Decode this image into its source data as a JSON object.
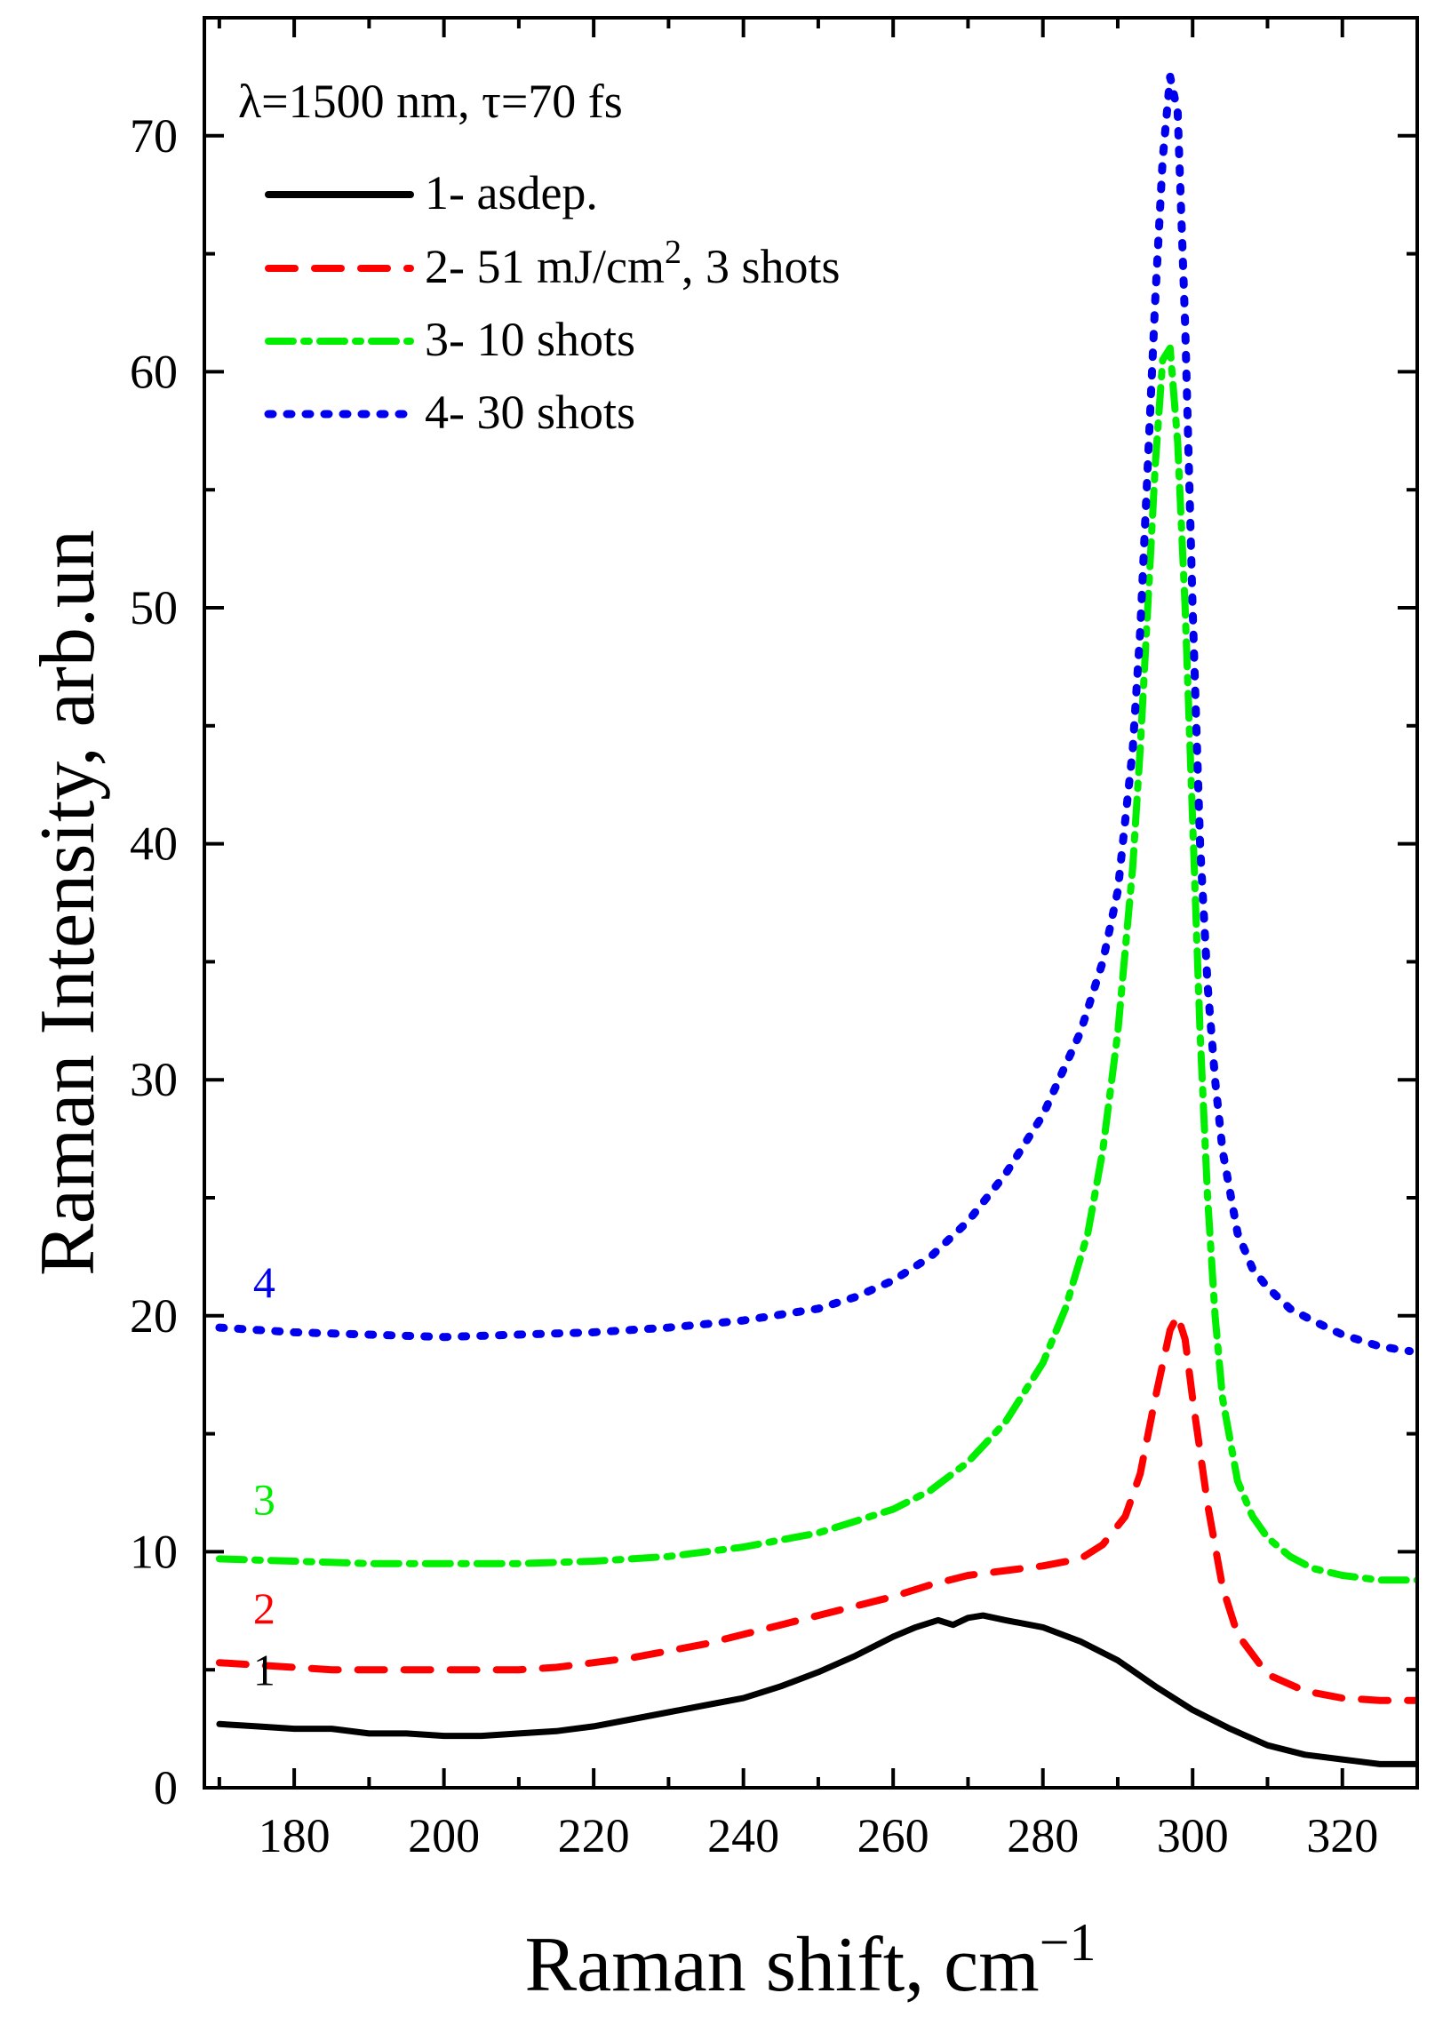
{
  "chart_data": {
    "type": "line",
    "xlabel": "Raman shift, cm",
    "xlabel_superscript": "−1",
    "ylabel": "Raman Intensity, arb.un",
    "annotation": "λ=1500 nm, τ=70 fs",
    "xlim": [
      168,
      330
    ],
    "ylim": [
      0,
      75
    ],
    "x_ticks": [
      180,
      200,
      220,
      240,
      260,
      280,
      300,
      320
    ],
    "y_ticks": [
      0,
      10,
      20,
      30,
      40,
      50,
      60,
      70
    ],
    "series": [
      {
        "name": "1- asdep.",
        "curve_label": "1",
        "color": "#000000",
        "style": "solid",
        "x": [
          170,
          175,
          180,
          185,
          190,
          195,
          200,
          205,
          210,
          215,
          220,
          225,
          230,
          235,
          240,
          245,
          250,
          255,
          260,
          263,
          266,
          268,
          270,
          272,
          275,
          280,
          285,
          290,
          295,
          300,
          305,
          310,
          315,
          320,
          325,
          330
        ],
        "y": [
          2.7,
          2.6,
          2.5,
          2.5,
          2.3,
          2.3,
          2.2,
          2.2,
          2.3,
          2.4,
          2.6,
          2.9,
          3.2,
          3.5,
          3.8,
          4.3,
          4.9,
          5.6,
          6.4,
          6.8,
          7.1,
          6.9,
          7.2,
          7.3,
          7.1,
          6.8,
          6.2,
          5.4,
          4.3,
          3.3,
          2.5,
          1.8,
          1.4,
          1.2,
          1.0,
          1.0
        ]
      },
      {
        "name": "2- 51 mJ/cm",
        "name_superscript": "2",
        "name_suffix": ", 3 shots",
        "curve_label": "2",
        "color": "#ff0000",
        "style": "dash",
        "x": [
          170,
          175,
          180,
          185,
          190,
          195,
          200,
          205,
          210,
          215,
          220,
          225,
          230,
          235,
          240,
          245,
          250,
          255,
          260,
          265,
          270,
          275,
          280,
          285,
          288,
          291,
          293,
          295,
          297,
          298,
          299,
          300,
          302,
          304,
          306,
          310,
          315,
          320,
          325,
          330
        ],
        "y": [
          5.3,
          5.2,
          5.1,
          5.0,
          5.0,
          5.0,
          5.0,
          5.0,
          5.0,
          5.1,
          5.3,
          5.5,
          5.8,
          6.1,
          6.5,
          6.9,
          7.3,
          7.7,
          8.1,
          8.6,
          9.0,
          9.2,
          9.4,
          9.7,
          10.3,
          11.5,
          13.3,
          16.5,
          19.4,
          20.0,
          19.0,
          16.5,
          12.0,
          8.5,
          6.5,
          4.8,
          4.1,
          3.8,
          3.7,
          3.7
        ]
      },
      {
        "name": "3- 10 shots",
        "curve_label": "3",
        "color": "#00ee00",
        "style": "dashdot",
        "x": [
          170,
          180,
          190,
          200,
          210,
          220,
          230,
          240,
          250,
          255,
          260,
          265,
          270,
          275,
          280,
          283,
          286,
          288,
          290,
          292,
          293,
          294,
          295,
          296,
          297,
          298,
          299,
          300,
          301,
          302,
          303,
          304,
          306,
          308,
          310,
          313,
          316,
          320,
          325,
          330
        ],
        "y": [
          9.7,
          9.6,
          9.5,
          9.5,
          9.5,
          9.6,
          9.8,
          10.2,
          10.8,
          11.3,
          11.8,
          12.6,
          13.8,
          15.5,
          18.0,
          20.3,
          23.5,
          27.0,
          32.0,
          39.0,
          44.0,
          50.0,
          56.0,
          60.5,
          61.0,
          57.0,
          50.0,
          41.0,
          32.0,
          25.0,
          20.0,
          16.5,
          13.0,
          11.5,
          10.6,
          9.8,
          9.3,
          9.0,
          8.8,
          8.8
        ]
      },
      {
        "name": "4- 30 shots",
        "curve_label": "4",
        "color": "#0000ee",
        "style": "dot",
        "x": [
          170,
          180,
          190,
          200,
          210,
          220,
          230,
          240,
          250,
          255,
          260,
          265,
          270,
          275,
          280,
          285,
          288,
          290,
          292,
          293,
          294,
          295,
          296,
          297,
          298,
          299,
          300,
          301,
          302,
          303,
          304,
          306,
          308,
          310,
          313,
          316,
          320,
          325,
          329
        ],
        "y": [
          19.5,
          19.3,
          19.2,
          19.1,
          19.2,
          19.3,
          19.5,
          19.8,
          20.3,
          20.8,
          21.5,
          22.5,
          24.0,
          26.0,
          28.5,
          32.0,
          35.0,
          38.0,
          44.0,
          49.0,
          56.0,
          63.0,
          69.0,
          72.5,
          71.0,
          62.0,
          50.0,
          40.0,
          34.0,
          30.0,
          27.0,
          23.5,
          22.0,
          21.2,
          20.3,
          19.8,
          19.2,
          18.7,
          18.5
        ]
      }
    ]
  }
}
